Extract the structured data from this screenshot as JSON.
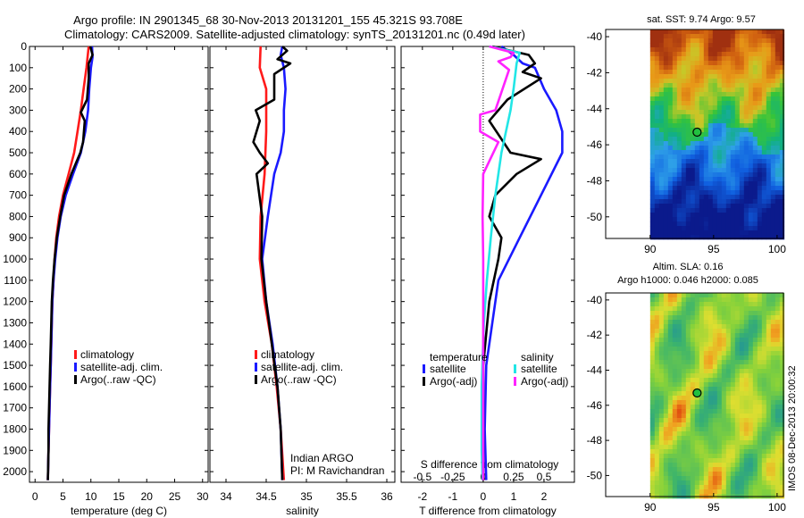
{
  "title": {
    "line1": "Argo profile: IN 2901345_68 30-Nov-2013 20131201_155 45.321S 93.708E",
    "line2": "Climatology: CARS2009. Satellite-adjusted climatology: synTS_20131201.nc (0.49d later)"
  },
  "credit": "IMOS 08-Dec-2013 20:00:32",
  "colors": {
    "climatology": "#ff1a1a",
    "satellite": "#1a1aff",
    "argo": "#000000",
    "sal_satellite": "#22e6e6",
    "sal_argo": "#ff22ff"
  },
  "chart_data": [
    {
      "type": "line",
      "name": "temperature",
      "xlabel": "temperature (deg C)",
      "xlim": [
        -1,
        31
      ],
      "xticks": [
        0,
        5,
        10,
        15,
        20,
        25,
        30
      ],
      "ylim": [
        0,
        2050
      ],
      "yreversed": true,
      "yticks": [
        0,
        100,
        200,
        300,
        400,
        500,
        600,
        700,
        800,
        900,
        1000,
        1100,
        1200,
        1300,
        1400,
        1500,
        1600,
        1700,
        1800,
        1900,
        2000
      ],
      "legend": {
        "placement": "lower-right",
        "entries": [
          "climatology",
          "satellite-adj. clim.",
          "Argo(..raw -QC)"
        ]
      },
      "series": [
        {
          "key": "climatology",
          "color": "#ff1a1a",
          "points": [
            [
              9.6,
              0
            ],
            [
              9.2,
              100
            ],
            [
              8.7,
              200
            ],
            [
              8.2,
              300
            ],
            [
              7.6,
              400
            ],
            [
              7.0,
              500
            ],
            [
              6.0,
              600
            ],
            [
              5.0,
              700
            ],
            [
              4.3,
              800
            ],
            [
              3.8,
              900
            ],
            [
              3.5,
              1000
            ],
            [
              3.3,
              1100
            ],
            [
              3.1,
              1200
            ],
            [
              3.0,
              1300
            ],
            [
              2.9,
              1400
            ],
            [
              2.8,
              1500
            ],
            [
              2.7,
              1600
            ],
            [
              2.6,
              1700
            ],
            [
              2.5,
              1800
            ],
            [
              2.4,
              1900
            ],
            [
              2.3,
              2040
            ]
          ]
        },
        {
          "key": "satellite",
          "color": "#1a1aff",
          "points": [
            [
              10.2,
              0
            ],
            [
              10.3,
              50
            ],
            [
              10.0,
              100
            ],
            [
              9.7,
              200
            ],
            [
              9.5,
              300
            ],
            [
              9.0,
              400
            ],
            [
              8.2,
              500
            ],
            [
              6.8,
              600
            ],
            [
              5.5,
              700
            ],
            [
              4.6,
              800
            ],
            [
              4.0,
              900
            ],
            [
              3.6,
              1000
            ],
            [
              3.3,
              1100
            ],
            [
              3.1,
              1200
            ],
            [
              3.0,
              1300
            ],
            [
              2.9,
              1400
            ],
            [
              2.8,
              1500
            ],
            [
              2.7,
              1600
            ],
            [
              2.6,
              1700
            ],
            [
              2.5,
              1800
            ],
            [
              2.4,
              1900
            ],
            [
              2.3,
              2040
            ]
          ]
        },
        {
          "key": "argo",
          "color": "#000000",
          "points": [
            [
              9.9,
              0
            ],
            [
              10.3,
              40
            ],
            [
              9.6,
              80
            ],
            [
              9.6,
              150
            ],
            [
              9.3,
              250
            ],
            [
              8.2,
              310
            ],
            [
              8.9,
              350
            ],
            [
              8.6,
              450
            ],
            [
              8.1,
              500
            ],
            [
              6.5,
              600
            ],
            [
              5.2,
              700
            ],
            [
              4.5,
              800
            ],
            [
              3.9,
              900
            ],
            [
              3.5,
              1000
            ],
            [
              3.2,
              1100
            ],
            [
              3.0,
              1200
            ],
            [
              2.9,
              1300
            ],
            [
              2.8,
              1400
            ],
            [
              2.7,
              1500
            ],
            [
              2.6,
              1600
            ],
            [
              2.5,
              1700
            ],
            [
              2.4,
              1800
            ],
            [
              2.4,
              1900
            ],
            [
              2.3,
              2040
            ]
          ]
        }
      ]
    },
    {
      "type": "line",
      "name": "salinity",
      "xlabel": "salinity",
      "xlim": [
        33.8,
        36.1
      ],
      "xticks": [
        34,
        34.5,
        35,
        35.5,
        36
      ],
      "ylim": [
        0,
        2050
      ],
      "yreversed": true,
      "legend": {
        "placement": "lower-right",
        "entries": [
          "climatology",
          "satellite-adj. clim.",
          "Argo(..raw -QC)"
        ]
      },
      "annotation": [
        "Indian ARGO",
        "PI: M Ravichandran"
      ],
      "series": [
        {
          "key": "climatology",
          "color": "#ff1a1a",
          "points": [
            [
              34.43,
              0
            ],
            [
              34.42,
              100
            ],
            [
              34.5,
              200
            ],
            [
              34.5,
              400
            ],
            [
              34.48,
              600
            ],
            [
              34.43,
              800
            ],
            [
              34.42,
              1000
            ],
            [
              34.48,
              1200
            ],
            [
              34.57,
              1400
            ],
            [
              34.63,
              1600
            ],
            [
              34.68,
              1800
            ],
            [
              34.72,
              2040
            ]
          ]
        },
        {
          "key": "satellite",
          "color": "#1a1aff",
          "points": [
            [
              34.7,
              0
            ],
            [
              34.68,
              40
            ],
            [
              34.72,
              100
            ],
            [
              34.74,
              200
            ],
            [
              34.72,
              300
            ],
            [
              34.72,
              400
            ],
            [
              34.68,
              500
            ],
            [
              34.6,
              600
            ],
            [
              34.52,
              800
            ],
            [
              34.45,
              1000
            ],
            [
              34.5,
              1200
            ],
            [
              34.58,
              1400
            ],
            [
              34.64,
              1600
            ],
            [
              34.68,
              1800
            ],
            [
              34.7,
              2040
            ]
          ]
        },
        {
          "key": "argo",
          "color": "#000000",
          "points": [
            [
              34.7,
              0
            ],
            [
              34.76,
              20
            ],
            [
              34.64,
              60
            ],
            [
              34.8,
              80
            ],
            [
              34.6,
              130
            ],
            [
              34.6,
              250
            ],
            [
              34.37,
              300
            ],
            [
              34.42,
              350
            ],
            [
              34.34,
              450
            ],
            [
              34.42,
              500
            ],
            [
              34.52,
              550
            ],
            [
              34.38,
              600
            ],
            [
              34.45,
              800
            ],
            [
              34.44,
              1000
            ],
            [
              34.5,
              1200
            ],
            [
              34.57,
              1400
            ],
            [
              34.64,
              1600
            ],
            [
              34.68,
              1800
            ],
            [
              34.7,
              2040
            ]
          ]
        }
      ]
    },
    {
      "type": "line",
      "name": "difference",
      "xlabel": "T difference from climatology",
      "xlabel_top": "S difference from climatology",
      "xlim": [
        -2.7,
        3
      ],
      "xticks": [
        -2,
        -1,
        0,
        1,
        2
      ],
      "xticks_sal": [
        -0.5,
        -0.25,
        0,
        0.25,
        0.5
      ],
      "sal_scale": 4,
      "ylim": [
        0,
        2050
      ],
      "yreversed": true,
      "zero_line": true,
      "legend": {
        "placement": "lower",
        "group_titles": [
          "temperature",
          "salinity"
        ],
        "entries": [
          "satellite",
          "Argo(-adj)",
          "satellite",
          "Argo(-adj)"
        ]
      },
      "series": [
        {
          "key": "temp_satellite",
          "color": "#1a1aff",
          "points": [
            [
              0.6,
              0
            ],
            [
              1.0,
              40
            ],
            [
              1.3,
              80
            ],
            [
              1.7,
              100
            ],
            [
              2.0,
              200
            ],
            [
              2.4,
              300
            ],
            [
              2.6,
              400
            ],
            [
              2.6,
              500
            ],
            [
              1.9,
              700
            ],
            [
              1.2,
              900
            ],
            [
              0.5,
              1100
            ],
            [
              0.3,
              1300
            ],
            [
              0.1,
              1500
            ],
            [
              0.05,
              1800
            ],
            [
              0.1,
              2040
            ]
          ]
        },
        {
          "key": "temp_argo",
          "color": "#000000",
          "points": [
            [
              0.3,
              0
            ],
            [
              1.5,
              40
            ],
            [
              1.7,
              80
            ],
            [
              1.3,
              120
            ],
            [
              1.9,
              150
            ],
            [
              0.8,
              250
            ],
            [
              0.2,
              350
            ],
            [
              0.9,
              500
            ],
            [
              1.9,
              530
            ],
            [
              1.1,
              600
            ],
            [
              0.4,
              700
            ],
            [
              0.2,
              800
            ],
            [
              0.6,
              900
            ],
            [
              0.5,
              1000
            ],
            [
              0.2,
              1200
            ],
            [
              0.0,
              1500
            ],
            [
              0.0,
              1800
            ],
            [
              0.0,
              2040
            ]
          ]
        },
        {
          "key": "sal_satellite",
          "color": "#22e6e6",
          "points": [
            [
              0.2,
              0
            ],
            [
              1.2,
              30
            ],
            [
              1.1,
              80
            ],
            [
              1.0,
              200
            ],
            [
              0.9,
              300
            ],
            [
              0.6,
              500
            ],
            [
              0.4,
              700
            ],
            [
              0.25,
              900
            ],
            [
              0.12,
              1100
            ],
            [
              0.02,
              1300
            ],
            [
              -0.05,
              1600
            ],
            [
              -0.05,
              1900
            ],
            [
              -0.02,
              2040
            ]
          ]
        },
        {
          "key": "sal_argo",
          "color": "#ff22ff",
          "points": [
            [
              0.2,
              0
            ],
            [
              1.0,
              30
            ],
            [
              0.9,
              50
            ],
            [
              0.5,
              70
            ],
            [
              0.85,
              110
            ],
            [
              0.4,
              300
            ],
            [
              -0.1,
              320
            ],
            [
              -0.1,
              400
            ],
            [
              0.5,
              450
            ],
            [
              0.0,
              600
            ],
            [
              -0.02,
              800
            ],
            [
              0.0,
              1000
            ],
            [
              0.0,
              1300
            ],
            [
              0.0,
              1600
            ],
            [
              0.0,
              1900
            ],
            [
              0.0,
              2040
            ]
          ]
        }
      ]
    },
    {
      "type": "heatmap",
      "name": "sst-map",
      "title": "sat. SST: 9.74  Argo: 9.57",
      "xticks": [
        90,
        95,
        100
      ],
      "yticks": [
        -40,
        -42,
        -44,
        -46,
        -48,
        -50
      ],
      "xlim": [
        86.5,
        100.5
      ],
      "ylim": [
        -51.2,
        -39.6
      ],
      "data_xstart": 90,
      "marker": [
        93.7,
        -45.3
      ]
    },
    {
      "type": "heatmap",
      "name": "sla-map",
      "title": [
        "Altim. SLA: 0.16",
        "Argo h1000: 0.046  h2000: 0.085"
      ],
      "xticks": [
        90,
        95,
        100
      ],
      "yticks": [
        -40,
        -42,
        -44,
        -46,
        -48,
        -50
      ],
      "xlim": [
        86.5,
        100.5
      ],
      "ylim": [
        -51.2,
        -39.6
      ],
      "data_xstart": 90,
      "marker": [
        93.7,
        -45.3
      ]
    }
  ]
}
